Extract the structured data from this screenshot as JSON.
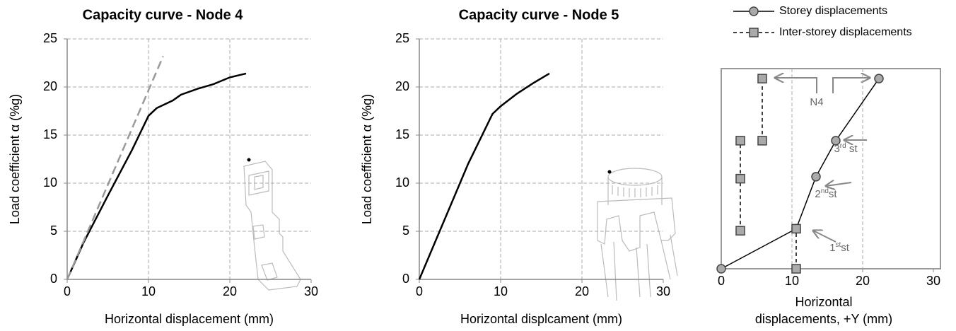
{
  "chart_data": [
    {
      "type": "line",
      "title": "Capacity curve - Node 4",
      "xlabel": "Horizontal displacement (mm)",
      "ylabel": "Load coefficient α (%g)",
      "xlim": [
        0,
        30
      ],
      "xticks": [
        0,
        10,
        20,
        30
      ],
      "ylim": [
        0,
        25
      ],
      "yticks": [
        0,
        5,
        10,
        15,
        20,
        25
      ],
      "grid": true,
      "series": [
        {
          "color": "#000000",
          "x": [
            0,
            2,
            5,
            8,
            10,
            11,
            13,
            14,
            16,
            18,
            20,
            21.5,
            22
          ],
          "values": [
            0,
            3.8,
            8.7,
            13.5,
            17,
            17.8,
            18.6,
            19.2,
            19.8,
            20.3,
            21,
            21.3,
            21.4
          ]
        },
        {
          "color": "#999999",
          "dashed": true,
          "x": [
            0,
            11.8
          ],
          "values": [
            0,
            23.2
          ]
        }
      ]
    },
    {
      "type": "line",
      "title": "Capacity  curve - Node 5",
      "xlabel": "Horizontal displcament (mm)",
      "ylabel": "Load coefficient α (%g)",
      "xlim": [
        0,
        30
      ],
      "xticks": [
        0,
        10,
        20,
        30
      ],
      "ylim": [
        0,
        25
      ],
      "yticks": [
        0,
        5,
        10,
        15,
        20,
        25
      ],
      "grid": true,
      "series": [
        {
          "color": "#000000",
          "x": [
            0,
            3,
            6,
            9,
            10,
            12,
            14,
            16
          ],
          "values": [
            0,
            6,
            12,
            17.2,
            18,
            19.3,
            20.4,
            21.4
          ]
        }
      ]
    },
    {
      "type": "line",
      "xlabel": [
        "Horizontal",
        "displacements, +Y (mm)"
      ],
      "xlim": [
        0,
        30
      ],
      "xticks": [
        0,
        10,
        20,
        30
      ],
      "ylim": [
        0,
        10
      ],
      "grid": true,
      "legend": "top",
      "series": [
        {
          "name": "Storey displacements",
          "color": "#000000",
          "marker": "circle",
          "x": [
            0,
            10.6,
            13.4,
            16.2,
            22.3
          ],
          "values": [
            0,
            2.0,
            4.6,
            6.4,
            9.5
          ]
        },
        {
          "name": "Inter-storey displacements",
          "color": "#000000",
          "marker": "square",
          "dashed": true,
          "x": [
            10.6,
            10.6,
            null,
            2.7,
            2.7,
            2.7,
            null,
            5.8,
            5.8
          ],
          "values": [
            0,
            2.0,
            null,
            1.9,
            4.5,
            6.4,
            null,
            6.4,
            9.5
          ]
        }
      ],
      "annotations": [
        [
          "N4"
        ],
        [
          "3",
          "rd",
          " st"
        ],
        [
          "2",
          "nd",
          "st"
        ],
        [
          "1",
          "st",
          "st"
        ]
      ]
    }
  ]
}
